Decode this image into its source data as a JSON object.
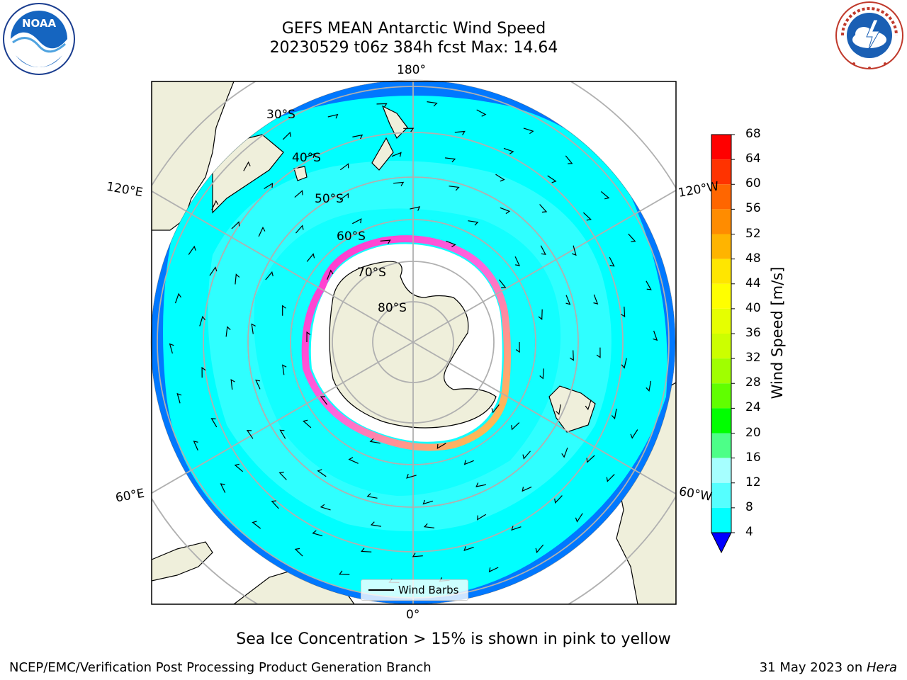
{
  "title_line1": "GEFS MEAN Antarctic Wind Speed",
  "title_line2": "20230529 t06z 384h fcst   Max: 14.64",
  "caption": "Sea Ice Concentration > 15% is shown in pink to yellow",
  "footer_left": "NCEP/EMC/Verification Post Processing Product Generation Branch",
  "footer_right_date": "31 May 2023 on ",
  "footer_right_host": "Hera",
  "logos": {
    "left": "NOAA",
    "right": "NATIONAL WEATHER SERVICE"
  },
  "legend": {
    "label": "Wind Barbs"
  },
  "map": {
    "projection": "south polar stereographic",
    "lat_labels": [
      "30°S",
      "40°S",
      "50°S",
      "60°S",
      "70°S",
      "80°S"
    ],
    "lon_labels": {
      "top": "180°",
      "bottom": "0°",
      "left_upper": "120°E",
      "left_lower": "60°E",
      "right_upper": "120°W",
      "right_lower": "60°W"
    }
  },
  "colorbar": {
    "title": "Wind Speed [m/s]",
    "ticks": [
      "68",
      "64",
      "60",
      "56",
      "52",
      "48",
      "44",
      "40",
      "36",
      "32",
      "28",
      "24",
      "20",
      "16",
      "12",
      "8",
      "4"
    ],
    "colors": [
      "#ff0000",
      "#ff3300",
      "#ff6600",
      "#ff8c00",
      "#ffb400",
      "#ffe600",
      "#ffff00",
      "#e6ff00",
      "#ccff00",
      "#a0ff00",
      "#60ff00",
      "#00ff00",
      "#4dff88",
      "#a6ffff",
      "#55ffff",
      "#00ffff",
      "#0078ff"
    ],
    "extend_color": "#0000ff"
  }
}
